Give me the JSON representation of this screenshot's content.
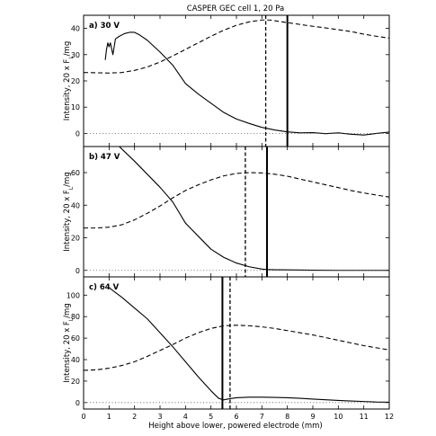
{
  "title": "CASPER GEC cell 1, 20 Pa",
  "xlabel": "Height above lower, powered electrode (mm)",
  "chart_data": [
    {
      "type": "line",
      "panel_label": "a) 30 V",
      "ylabel": "Intensity, 20 x F_L/mg",
      "xlim": [
        0,
        12
      ],
      "ylim": [
        -5,
        45
      ],
      "xticks": [
        "0",
        "1",
        "2",
        "3",
        "4",
        "5",
        "6",
        "7",
        "8",
        "9",
        "10",
        "11",
        "12"
      ],
      "yticks": [
        "0",
        "10",
        "20",
        "30",
        "40"
      ],
      "ytick_values": [
        0,
        10,
        20,
        30,
        40
      ],
      "series": [
        {
          "style": "solid",
          "x": [
            0.85,
            0.9,
            0.95,
            1.0,
            1.05,
            1.15,
            1.25,
            1.4,
            1.6,
            1.8,
            2.0,
            2.2,
            2.5,
            3.0,
            3.5,
            4.0,
            4.5,
            5.0,
            5.5,
            6.0,
            6.5,
            7.0,
            7.5,
            8.0,
            8.5,
            9.0,
            9.5,
            10.0,
            10.5,
            11.0,
            11.5,
            12.0
          ],
          "y": [
            28,
            32,
            34.5,
            33,
            34.5,
            30,
            36,
            37,
            38,
            38.5,
            38.5,
            37.5,
            35.5,
            31,
            26,
            19,
            15,
            11.5,
            8,
            5.5,
            3.8,
            2.3,
            1.3,
            0.6,
            0.2,
            0.3,
            -0.1,
            0.2,
            -0.3,
            -0.6,
            0,
            0.5
          ]
        },
        {
          "style": "dashed",
          "x": [
            0,
            0.5,
            1,
            1.5,
            2,
            2.5,
            3,
            3.5,
            4,
            4.5,
            5,
            5.5,
            6,
            6.5,
            7,
            7.3,
            7.6,
            8,
            8.5,
            9,
            9.5,
            10,
            10.5,
            11,
            11.5,
            12
          ],
          "y": [
            23.2,
            23.1,
            23,
            23.2,
            24,
            25.3,
            27.2,
            29.5,
            32,
            34.5,
            37,
            39.3,
            41.2,
            42.5,
            43.2,
            43.2,
            42.8,
            42.2,
            41.5,
            40.8,
            40.2,
            39.5,
            38.8,
            37.8,
            37,
            36.3
          ]
        },
        {
          "style": "dotted",
          "x": [
            0,
            12
          ],
          "y": [
            0,
            0
          ]
        }
      ],
      "vlines": [
        {
          "x": 7.15,
          "style": "dashed"
        },
        {
          "x": 8.0,
          "style": "solid"
        }
      ]
    },
    {
      "type": "line",
      "panel_label": "b) 47 V",
      "ylabel": "Intensity, 20 x F_L/mg",
      "xlim": [
        0,
        12
      ],
      "ylim": [
        -4,
        76
      ],
      "xticks": [
        "0",
        "1",
        "2",
        "3",
        "4",
        "5",
        "6",
        "7",
        "8",
        "9",
        "10",
        "11",
        "12"
      ],
      "yticks": [
        "0",
        "20",
        "40",
        "60"
      ],
      "ytick_values": [
        0,
        20,
        40,
        60
      ],
      "series": [
        {
          "style": "solid",
          "x": [
            1.4,
            1.6,
            2.0,
            2.5,
            3.0,
            3.5,
            4.0,
            4.5,
            5.0,
            5.5,
            6.0,
            6.5,
            7.0,
            7.2,
            7.5,
            8.0,
            9.0,
            10.0,
            11.0,
            12.0
          ],
          "y": [
            76,
            73,
            67,
            59,
            51,
            42,
            29,
            21,
            13,
            8,
            4.5,
            2.2,
            0.8,
            0.5,
            0.4,
            0.3,
            0.1,
            0,
            0,
            0
          ]
        },
        {
          "style": "dashed",
          "x": [
            0,
            0.5,
            1,
            1.5,
            2,
            2.5,
            3,
            3.5,
            4,
            4.5,
            5,
            5.5,
            6,
            6.5,
            7,
            7.5,
            8,
            8.5,
            9,
            9.5,
            10,
            10.5,
            11,
            11.5,
            12
          ],
          "y": [
            26,
            26,
            26.5,
            28,
            31,
            35,
            39.5,
            44.5,
            49,
            52.5,
            55.5,
            58,
            59.5,
            60,
            59.8,
            59,
            57.8,
            56,
            54.3,
            52.5,
            50.8,
            49,
            47.5,
            46.2,
            45
          ]
        },
        {
          "style": "dotted",
          "x": [
            0,
            12
          ],
          "y": [
            0,
            0
          ]
        }
      ],
      "vlines": [
        {
          "x": 6.35,
          "style": "dashed"
        },
        {
          "x": 7.2,
          "style": "solid"
        }
      ]
    },
    {
      "type": "line",
      "panel_label": "c) 64 V",
      "ylabel": "Intensity, 20 x F_L/mg",
      "xlim": [
        0,
        12
      ],
      "ylim": [
        -6,
        117
      ],
      "xticks": [
        "0",
        "1",
        "2",
        "3",
        "4",
        "5",
        "6",
        "7",
        "8",
        "9",
        "10",
        "11",
        "12"
      ],
      "yticks": [
        "0",
        "20",
        "40",
        "60",
        "80",
        "100"
      ],
      "ytick_values": [
        0,
        20,
        40,
        60,
        80,
        100
      ],
      "series": [
        {
          "style": "solid",
          "x": [
            1.0,
            1.5,
            2.0,
            2.5,
            3.0,
            3.5,
            4.0,
            4.5,
            5.0,
            5.3,
            5.5,
            5.7,
            6.0,
            6.5,
            7.0,
            7.5,
            8.0,
            8.5,
            9.0,
            9.5,
            10.0,
            10.5,
            11.0,
            11.5,
            12.0
          ],
          "y": [
            107,
            98,
            88,
            78,
            65,
            52,
            38,
            24,
            11,
            4,
            2.5,
            3.5,
            4.5,
            5,
            5,
            4.8,
            4.5,
            4,
            3.3,
            2.6,
            2,
            1.5,
            1,
            0.5,
            0.3
          ]
        },
        {
          "style": "dashed",
          "x": [
            0,
            0.5,
            1,
            1.5,
            2,
            2.5,
            3,
            3.5,
            4,
            4.5,
            5,
            5.5,
            6,
            6.5,
            7,
            7.5,
            8,
            8.5,
            9,
            9.5,
            10,
            10.5,
            11,
            11.5,
            12
          ],
          "y": [
            30,
            30.5,
            32,
            34.5,
            38,
            43,
            48.5,
            54,
            60,
            65,
            69,
            71.5,
            72,
            71.5,
            70.5,
            69,
            67,
            65,
            63,
            60.5,
            58,
            55.5,
            53,
            51,
            49
          ]
        },
        {
          "style": "dotted",
          "x": [
            0,
            12
          ],
          "y": [
            0,
            0
          ]
        }
      ],
      "vlines": [
        {
          "x": 5.45,
          "style": "solid"
        },
        {
          "x": 5.75,
          "style": "dashed"
        }
      ]
    }
  ]
}
